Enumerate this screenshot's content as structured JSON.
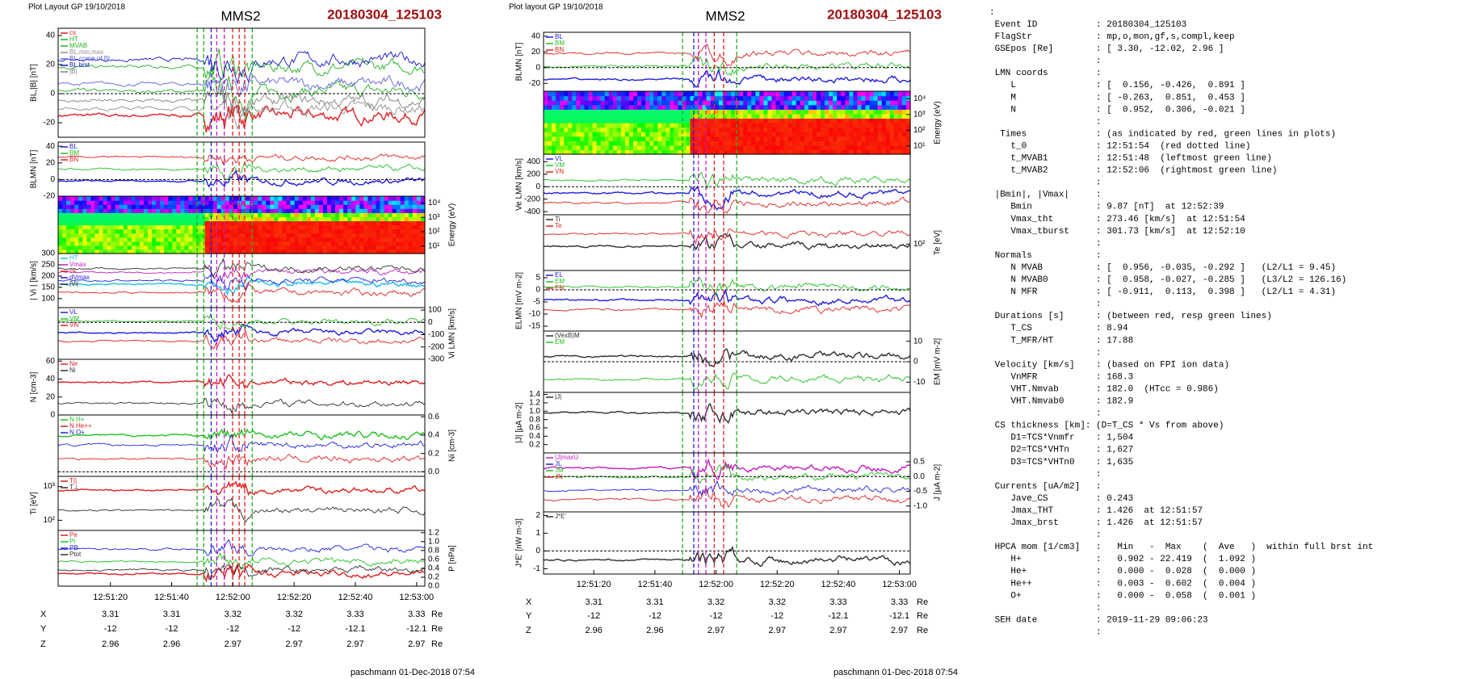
{
  "left": {
    "header": "Plot Layout GP 19/10/2018",
    "title": "MMS2",
    "event": "20180304_125103",
    "panels": [
      {
        "ylabel": "BL,|B| [nT]",
        "side": "left",
        "ylim": [
          -30,
          45
        ],
        "yticks": [
          40,
          20,
          0,
          -20
        ],
        "legend": [
          {
            "name": "cs",
            "color": "#e02020"
          },
          {
            "name": "HT",
            "color": "#20b020"
          },
          {
            "name": "MVAB",
            "color": "#20b020"
          },
          {
            "name": "BL,min,max",
            "color": "#909090"
          },
          {
            "name": "BL,comp of BL",
            "color": "#6060e0"
          },
          {
            "name": "BL brst",
            "color": "#1010d0"
          },
          {
            "name": "|B|",
            "color": "#808080"
          }
        ]
      },
      {
        "ylabel": "BLMN [nT]",
        "side": "left",
        "ylim": [
          -20,
          45
        ],
        "yticks": [
          40,
          20,
          0,
          -20
        ],
        "legend": [
          {
            "name": "BL",
            "color": "#2020e0"
          },
          {
            "name": "BM",
            "color": "#20c020"
          },
          {
            "name": "BN",
            "color": "#e02020"
          }
        ]
      },
      {
        "ylabel": "Energy (eV)",
        "side": "right",
        "spectrogram": true,
        "log": true,
        "ylim": [
          3,
          30000
        ],
        "yticks": [
          {
            "value": 10000,
            "label": "10⁴"
          },
          {
            "value": 1000,
            "label": "10³"
          },
          {
            "value": 100,
            "label": "10²"
          },
          {
            "value": 10,
            "label": "10¹"
          }
        ],
        "legend": []
      },
      {
        "ylabel": "| Vi | [km/s]",
        "side": "left",
        "ylim": [
          60,
          300
        ],
        "yticks": [
          300,
          250,
          200,
          150,
          100
        ],
        "legend": [
          {
            "name": "HT",
            "color": "#20c0e0"
          },
          {
            "name": "Vmax",
            "color": "#c020c0"
          },
          {
            "name": "cs",
            "color": "#e02020"
          },
          {
            "name": "dVmax",
            "color": "#2020e0"
          },
          {
            "name": "|Vi|",
            "color": "#303030"
          }
        ]
      },
      {
        "ylabel": "Vi LMN [km/s]",
        "side": "right",
        "ylim": [
          -300,
          120
        ],
        "yticks": [
          100,
          0,
          -100,
          -200,
          -300
        ],
        "legend": [
          {
            "name": "VL",
            "color": "#2020e0"
          },
          {
            "name": "VM",
            "color": "#20c020"
          },
          {
            "name": "VN",
            "color": "#e02020"
          }
        ]
      },
      {
        "ylabel": "N [cm-3]",
        "side": "left",
        "ylim": [
          0,
          62
        ],
        "yticks": [
          60,
          40,
          20,
          0
        ],
        "legend": [
          {
            "name": "Ne",
            "color": "#e02020"
          },
          {
            "name": "Ni",
            "color": "#303030"
          }
        ]
      },
      {
        "ylabel": "Ni [cm-3]",
        "side": "right",
        "ylim": [
          -0.05,
          0.62
        ],
        "yticks": [
          0.6,
          0.4,
          0.2,
          {
            "value": 0,
            "label": "0.0"
          }
        ],
        "legend": [
          {
            "name": "N H+",
            "color": "#20c020"
          },
          {
            "name": "N He++",
            "color": "#e02020"
          },
          {
            "name": "N O+",
            "color": "#2020e0"
          }
        ]
      },
      {
        "ylabel": "Ti [eV]",
        "side": "left",
        "log": true,
        "ylim": [
          50,
          2000
        ],
        "yticks": [
          {
            "value": 1000,
            "label": "10³"
          },
          {
            "value": 100,
            "label": "10²"
          }
        ],
        "legend": [
          {
            "name": "T||",
            "color": "#e02020"
          },
          {
            "name": "T⊥",
            "color": "#303030"
          }
        ]
      },
      {
        "ylabel": "P [nPa]",
        "side": "right",
        "ylim": [
          0,
          1.25
        ],
        "yticks": [
          1.2,
          {
            "value": 1,
            "label": "1.0"
          },
          0.8,
          0.6,
          0.4,
          0.2,
          {
            "value": 0,
            "label": "0.0"
          }
        ],
        "legend": [
          {
            "name": "Pe",
            "color": "#e02020"
          },
          {
            "name": "Pi",
            "color": "#20c020"
          },
          {
            "name": "PB",
            "color": "#2020e0"
          },
          {
            "name": "Ptot",
            "color": "#303030"
          }
        ]
      }
    ],
    "times": [
      "12:51:20",
      "12:51:40",
      "12:52:00",
      "12:52:20",
      "12:52:40",
      "12:53:00"
    ],
    "rows": [
      {
        "label": "X",
        "values": [
          3.31,
          3.31,
          3.32,
          3.32,
          3.33,
          3.33
        ],
        "unit": "Re"
      },
      {
        "label": "Y",
        "values": [
          -12,
          -12,
          -12,
          -12,
          -12.1,
          -12.1
        ],
        "unit": "Re"
      },
      {
        "label": "Z",
        "values": [
          2.96,
          2.96,
          2.97,
          2.97,
          2.97,
          2.97
        ],
        "unit": "Re"
      }
    ],
    "footer": "paschmann 01-Dec-2018 07:54"
  },
  "middle": {
    "header": "Plot layout GP 19/10/2018",
    "title": "MMS2",
    "event": "20180304_125103",
    "panels": [
      {
        "ylabel": "BLMN [nT]",
        "side": "left",
        "ylim": [
          -30,
          45
        ],
        "yticks": [
          40,
          20,
          0,
          -20
        ],
        "legend": [
          {
            "name": "BL",
            "color": "#2020e0"
          },
          {
            "name": "BM",
            "color": "#20c020"
          },
          {
            "name": "BN",
            "color": "#e02020"
          }
        ]
      },
      {
        "ylabel": "Energy (eV)",
        "side": "right",
        "spectrogram": true,
        "log": true,
        "ylim": [
          3,
          30000
        ],
        "yticks": [
          {
            "value": 10000,
            "label": "10⁴"
          },
          {
            "value": 1000,
            "label": "10³"
          },
          {
            "value": 100,
            "label": "10²"
          },
          {
            "value": 10,
            "label": "10¹"
          }
        ],
        "legend": []
      },
      {
        "ylabel": "Ve LMN [km/s]",
        "side": "left",
        "ylim": [
          -450,
          520
        ],
        "yticks": [
          400,
          200,
          0,
          -200,
          -400
        ],
        "legend": [
          {
            "name": "VL",
            "color": "#2020e0"
          },
          {
            "name": "VM",
            "color": "#20c020"
          },
          {
            "name": "VN",
            "color": "#e02020"
          }
        ]
      },
      {
        "ylabel": "Te [eV]",
        "side": "right",
        "log": true,
        "ylim": [
          20,
          600
        ],
        "yticks": [
          {
            "value": 100,
            "label": "10²"
          }
        ],
        "legend": [
          {
            "name": "Ti",
            "color": "#303030"
          },
          {
            "name": "Te",
            "color": "#e02020"
          }
        ]
      },
      {
        "ylabel": "ELMN [mV m-2]",
        "side": "left",
        "ylim": [
          -17,
          8
        ],
        "yticks": [
          5,
          0,
          -5,
          -10,
          -15
        ],
        "legend": [
          {
            "name": "EL",
            "color": "#2020e0"
          },
          {
            "name": "EM",
            "color": "#20c020"
          },
          {
            "name": "EN",
            "color": "#e02020"
          }
        ]
      },
      {
        "ylabel": "EM [mV m-2]",
        "side": "right",
        "ylim": [
          -15,
          15
        ],
        "yticks": [
          10,
          0,
          -10
        ],
        "legend": [
          {
            "name": "(VexB)M",
            "color": "#303030"
          },
          {
            "name": "EM",
            "color": "#20c020"
          }
        ]
      },
      {
        "ylabel": "|J| [µA m-2]",
        "side": "left",
        "ylim": [
          0,
          1.45
        ],
        "yticks": [
          1.4,
          1.2,
          {
            "value": 1,
            "label": "1.0"
          },
          0.8,
          0.6,
          0.4,
          0.2
        ],
        "legend": [
          {
            "name": "|J|",
            "color": "#303030"
          }
        ]
      },
      {
        "ylabel": "J [µA m-2]",
        "side": "right",
        "ylim": [
          -1.2,
          0.8
        ],
        "yticks": [
          0.5,
          {
            "value": 0,
            "label": "0.0"
          },
          -0.5,
          {
            "value": -1,
            "label": "-1.0"
          }
        ],
        "legend": [
          {
            "name": "|J|maxU",
            "color": "#c020c0"
          },
          {
            "name": "JL",
            "color": "#2020e0"
          },
          {
            "name": "JM",
            "color": "#20c020"
          },
          {
            "name": "JN",
            "color": "#e02020"
          }
        ]
      },
      {
        "ylabel": "J*E' [nW m-3]",
        "side": "left",
        "ylim": [
          -1.3,
          2.2
        ],
        "yticks": [
          2,
          1,
          0,
          -1
        ],
        "legend": [
          {
            "name": "J*E'",
            "color": "#303030"
          }
        ]
      }
    ],
    "times": [
      "12:51:20",
      "12:51:40",
      "12:52:00",
      "12:52:20",
      "12:52:40",
      "12:53:00"
    ],
    "rows": [
      {
        "label": "X",
        "values": [
          3.31,
          3.31,
          3.32,
          3.32,
          3.33,
          3.33
        ],
        "unit": "Re"
      },
      {
        "label": "Y",
        "values": [
          -12,
          -12,
          -12,
          -12,
          -12.1,
          -12.1
        ],
        "unit": "Re"
      },
      {
        "label": "Z",
        "values": [
          2.96,
          2.96,
          2.97,
          2.97,
          2.97,
          2.97
        ],
        "unit": "Re"
      }
    ],
    "footer": "paschmann 01-Dec-2018 07:54"
  },
  "info": {
    "lines": [
      ":",
      " Event ID           : 20180304_125103",
      " FlagStr            : mp,o,mon,gf,s,compl,keep",
      " GSEpos [Re]        : [ 3.30, -12.02, 2.96 ]",
      "                    :",
      " LMN coords         :",
      "    L               : [  0.156, -0.426,  0.891 ]",
      "    M               : [ -0.263,  0.851,  0.453 ]",
      "    N               : [  0.952,  0.306, -0.021 ]",
      "                    :",
      "  Times             : (as indicated by red, green lines in plots)",
      "    t_0             : 12:51:54  (red dotted line)",
      "    t_MVAB1         : 12:51:48  (leftmost green line)",
      "    t_MVAB2         : 12:52:06  (rightmost green line)",
      "                    :",
      " |Bmin|, |Vmax|     :",
      "    Bmin            : 9.87 [nT]  at 12:52:39",
      "    Vmax_tht        : 273.46 [km/s]  at 12:51:54",
      "    Vmax_tburst     : 301.73 [km/s]  at 12:52:10",
      "                    :",
      " Normals            :",
      "    N MVAB          : [  0.956, -0.035, -0.292 ]   (L2/L1 = 9.45)",
      "    N MVAB0         : [  0.958, -0.027, -0.285 ]   (L3/L2 = 126.16)",
      "    N MFR           : [ -0.911,  0.113,  0.398 ]   (L2/L1 = 4.31)",
      "                    :",
      " Durations [s]      : (between red, resp green lines)",
      "    T_CS            : 8.94",
      "    T_MFR/HT        : 17.88",
      "                    :",
      " Velocity [km/s]    : (based on FPI ion data)",
      "    VnMFR           : 168.3",
      "    VHT.Nmvab       : 182.0  (HTcc = 0.986)",
      "    VHT.Nmvab0      : 182.9",
      "                    :",
      " CS thickness [km]: (D=T_CS * Vs from above)",
      "    D1=TCS*Vnmfr    : 1,504",
      "    D2=TCS*VHTn     : 1,627",
      "    D3=TCS*VHTn0    : 1,635",
      "                    :",
      " Currents [uA/m2]   :",
      "    Jave_CS         : 0.243",
      "    Jmax_THT        : 1.426  at 12:51:57",
      "    Jmax_brst       : 1.426  at 12:51:57",
      "                    :",
      " HPCA mom [1/cm3]   :   Min   -  Max    (  Ave   )  within full brst int",
      "    H+              :   0.902 - 22.419  (  1.092 )",
      "    He+             :   0.000 -  0.028  (  0.000 )",
      "    He++            :   0.003 -  0.602  (  0.004 )",
      "    O+              :   0.000 -  0.058  (  0.001 )",
      "                    :",
      " SEH date           : 2019-11-29 09:06:23",
      "                    :"
    ]
  }
}
